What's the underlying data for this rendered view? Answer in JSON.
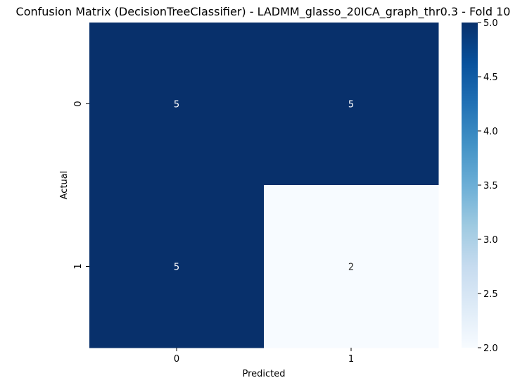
{
  "chart_data": {
    "type": "heatmap",
    "title": "Confusion Matrix (DecisionTreeClassifier) - LADMM_glasso_20ICA_graph_thr0.3 - Fold 10",
    "xlabel": "Predicted",
    "ylabel": "Actual",
    "x_categories": [
      "0",
      "1"
    ],
    "y_categories": [
      "0",
      "1"
    ],
    "values": [
      [
        5,
        5
      ],
      [
        5,
        2
      ]
    ],
    "annotations": true,
    "colormap": "Blues",
    "colorbar": {
      "min": 2.0,
      "max": 5.0,
      "ticks": [
        "2.0",
        "2.5",
        "3.0",
        "3.5",
        "4.0",
        "4.5",
        "5.0"
      ]
    },
    "colors": {
      "low": "#f7fbff",
      "high": "#08306b",
      "annotation_on_dark": "#ffffff",
      "annotation_on_light": "#262626"
    }
  }
}
